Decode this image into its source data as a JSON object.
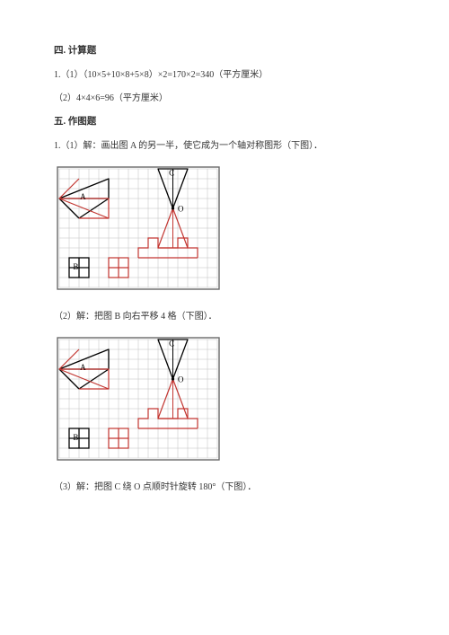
{
  "section4": {
    "title": "四. 计算题",
    "q1a": "1.（1）（10×5+10×8+5×8）×2=170×2=340（平方厘米）",
    "q1b": "（2）4×4×6=96（平方厘米）"
  },
  "section5": {
    "title": "五. 作图题",
    "q1": "1.（1）解：画出图 A 的另一半，使它成为一个轴对称图形（下图）．",
    "q2": "（2）解：把图 B 向右平移 4 格（下图）．",
    "q3": "（3）解：把图 C 绕 O 点顺时针旋转 180°（下图）．"
  },
  "figure": {
    "cols": 16,
    "rows": 12,
    "cell": 11,
    "labels": {
      "A": "A",
      "B": "B",
      "C": "C",
      "O": "O"
    },
    "colors": {
      "grid": "#808080",
      "gridLight": "#bfbfbf",
      "black": "#000000",
      "red": "#c23530",
      "frame": "#6a6a6a"
    },
    "shapeA_black": [
      [
        0,
        3
      ],
      [
        5,
        1
      ],
      [
        5,
        3
      ],
      [
        2,
        5
      ]
    ],
    "shapeA_red_mirror": [
      [
        0,
        3
      ],
      [
        5,
        5
      ],
      [
        5,
        3
      ],
      [
        2,
        1
      ]
    ],
    "shapeA_red_mirror2": [
      [
        0,
        3
      ],
      [
        2,
        5
      ],
      [
        5,
        5
      ],
      [
        5,
        3
      ]
    ],
    "shapeB_black": [
      [
        1,
        9
      ],
      [
        3,
        9
      ],
      [
        3,
        11
      ],
      [
        1,
        11
      ]
    ],
    "shapeB_black_inner": [
      [
        1,
        9
      ],
      [
        1,
        11
      ],
      [
        3,
        11
      ]
    ],
    "shapeB_red": [
      [
        5,
        9
      ],
      [
        7,
        9
      ],
      [
        7,
        11
      ],
      [
        5,
        11
      ]
    ],
    "shapeC_black": [
      [
        10,
        0
      ],
      [
        13,
        0
      ],
      [
        11.5,
        4
      ]
    ],
    "shapeC_red_base": [
      [
        8,
        8
      ],
      [
        9,
        8
      ],
      [
        9,
        9
      ],
      [
        10,
        9
      ],
      [
        10,
        10
      ],
      [
        12,
        10
      ],
      [
        12,
        9
      ],
      [
        13,
        9
      ],
      [
        13,
        8
      ],
      [
        14,
        8
      ],
      [
        14,
        7
      ],
      [
        12,
        7
      ],
      [
        12,
        6
      ],
      [
        11.5,
        4
      ],
      [
        10,
        7
      ],
      [
        8,
        7
      ]
    ],
    "shapeC_red_tri": [
      [
        10,
        8
      ],
      [
        13,
        8
      ],
      [
        11.5,
        4
      ]
    ],
    "pointO": [
      11.5,
      4
    ],
    "labelPos": {
      "A": [
        2.1,
        3.1
      ],
      "B": [
        1.4,
        10.2
      ],
      "C": [
        11.1,
        0.7
      ],
      "O": [
        12,
        4.3
      ]
    }
  }
}
